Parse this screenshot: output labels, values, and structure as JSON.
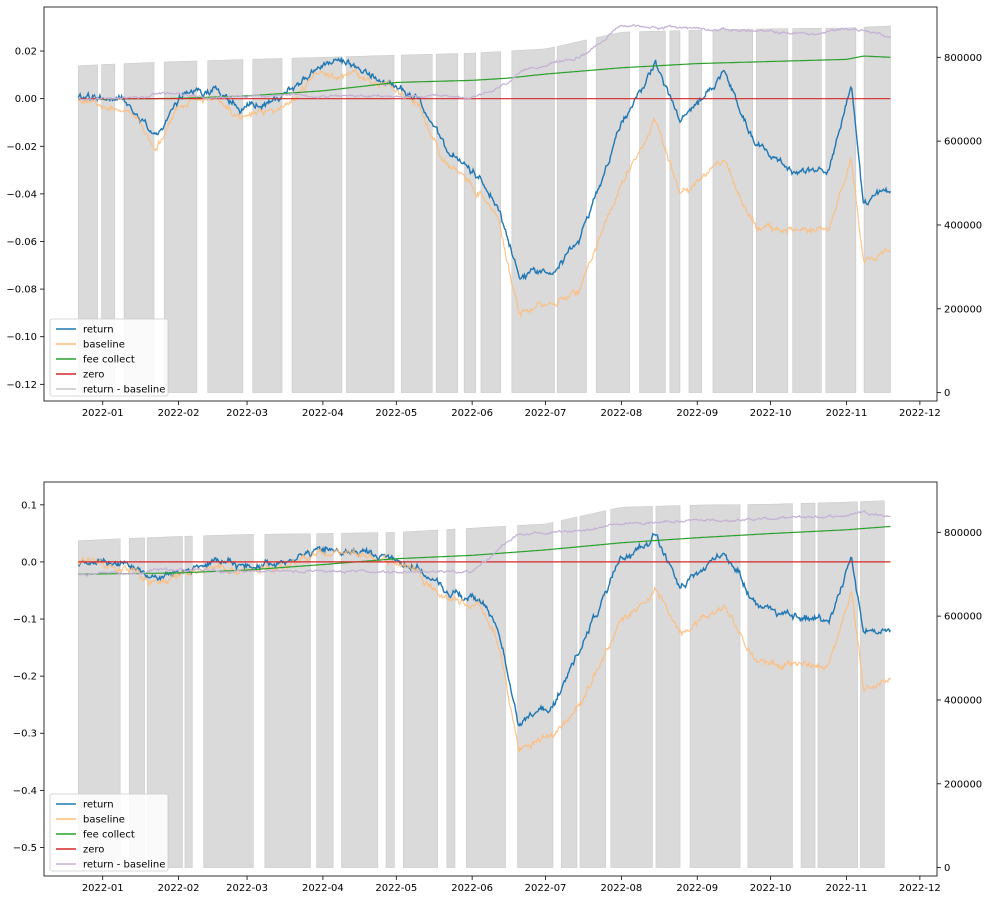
{
  "chart_data": [
    {
      "type": "line",
      "title": "",
      "x_axis": {
        "ticks": [
          "2022-01",
          "2022-02",
          "2022-03",
          "2022-04",
          "2022-05",
          "2022-06",
          "2022-07",
          "2022-08",
          "2022-09",
          "2022-10",
          "2022-11",
          "2022-12"
        ],
        "range": [
          "2021-12-08",
          "2022-12-08"
        ]
      },
      "y_left": {
        "ticks": [
          0.02,
          0.0,
          -0.02,
          -0.04,
          -0.06,
          -0.08,
          -0.1,
          -0.12
        ],
        "tick_labels": [
          "0.02",
          "0.00",
          "−0.02",
          "−0.04",
          "−0.06",
          "−0.08",
          "−0.10",
          "−0.12"
        ],
        "ylim": [
          -0.127,
          0.0385
        ]
      },
      "y_right": {
        "ticks": [
          800000,
          600000,
          400000,
          200000,
          0
        ],
        "tick_labels": [
          "800000",
          "600000",
          "400000",
          "200000",
          "0"
        ],
        "ylim": [
          -20000,
          920000
        ]
      },
      "legend": {
        "position": "lower left",
        "entries": [
          {
            "label": "return",
            "color": "#1f77b4"
          },
          {
            "label": "baseline",
            "color": "#ffbb78"
          },
          {
            "label": "fee collect",
            "color": "#2ca02c"
          },
          {
            "label": "zero",
            "color": "#d62728"
          },
          {
            "label": "return - baseline",
            "color": "#c7c7c7"
          }
        ]
      },
      "series": [
        {
          "name": "return",
          "color": "#1f77b4",
          "axis": "left",
          "x": [
            "2021-12-22",
            "2022-01-10",
            "2022-01-23",
            "2022-02-02",
            "2022-02-15",
            "2022-02-26",
            "2022-03-15",
            "2022-04-01",
            "2022-04-15",
            "2022-05-01",
            "2022-05-10",
            "2022-05-20",
            "2022-06-05",
            "2022-06-12",
            "2022-06-20",
            "2022-07-05",
            "2022-07-15",
            "2022-08-01",
            "2022-08-15",
            "2022-08-25",
            "2022-09-12",
            "2022-09-25",
            "2022-10-10",
            "2022-10-25",
            "2022-11-03",
            "2022-11-08",
            "2022-11-19"
          ],
          "values": [
            0.0,
            0.0,
            -0.015,
            0.0,
            0.005,
            -0.005,
            0.0,
            0.015,
            0.012,
            0.005,
            0.0,
            -0.02,
            -0.035,
            -0.045,
            -0.075,
            -0.07,
            -0.06,
            -0.01,
            0.015,
            -0.01,
            0.01,
            -0.02,
            -0.03,
            -0.03,
            0.005,
            -0.045,
            -0.037
          ]
        },
        {
          "name": "baseline",
          "color": "#ffbb78",
          "axis": "left",
          "x": [
            "2021-12-22",
            "2022-01-10",
            "2022-01-23",
            "2022-02-02",
            "2022-02-15",
            "2022-02-26",
            "2022-03-15",
            "2022-04-01",
            "2022-04-15",
            "2022-05-01",
            "2022-05-10",
            "2022-05-20",
            "2022-06-05",
            "2022-06-12",
            "2022-06-20",
            "2022-07-05",
            "2022-07-15",
            "2022-08-01",
            "2022-08-15",
            "2022-08-25",
            "2022-09-12",
            "2022-09-25",
            "2022-10-10",
            "2022-10-25",
            "2022-11-03",
            "2022-11-08",
            "2022-11-19"
          ],
          "values": [
            0.0,
            -0.005,
            -0.02,
            -0.002,
            0.0,
            -0.008,
            -0.004,
            0.012,
            0.01,
            0.003,
            -0.003,
            -0.025,
            -0.04,
            -0.05,
            -0.09,
            -0.085,
            -0.08,
            -0.035,
            -0.01,
            -0.04,
            -0.025,
            -0.055,
            -0.055,
            -0.055,
            -0.025,
            -0.07,
            -0.063
          ]
        },
        {
          "name": "fee collect",
          "color": "#2ca02c",
          "axis": "right",
          "x": [
            "2021-12-22",
            "2022-02-01",
            "2022-03-01",
            "2022-04-01",
            "2022-05-01",
            "2022-06-01",
            "2022-06-15",
            "2022-07-01",
            "2022-08-01",
            "2022-09-01",
            "2022-10-01",
            "2022-11-01",
            "2022-11-08",
            "2022-11-19"
          ],
          "values": [
            700000,
            702000,
            708000,
            720000,
            740000,
            745000,
            750000,
            760000,
            775000,
            785000,
            790000,
            795000,
            803000,
            800000
          ]
        },
        {
          "name": "zero",
          "color": "#d62728",
          "axis": "left",
          "x": [
            "2021-12-22",
            "2022-11-19"
          ],
          "values": [
            0.0,
            0.0
          ]
        },
        {
          "name": "return - baseline",
          "color": "#c7c7c7",
          "axis": "right",
          "style": "fill_between_zero",
          "x": [
            "2021-12-22",
            "2022-01-10",
            "2022-02-01",
            "2022-03-01",
            "2022-04-01",
            "2022-05-01",
            "2022-06-01",
            "2022-07-01",
            "2022-08-01",
            "2022-09-01",
            "2022-10-01",
            "2022-11-01",
            "2022-11-19"
          ],
          "values": [
            780000,
            785000,
            790000,
            795000,
            800000,
            805000,
            810000,
            820000,
            860000,
            865000,
            868000,
            870000,
            875000
          ]
        },
        {
          "name": "return - baseline",
          "color": "#c5b0d5",
          "axis": "right",
          "x": [
            "2021-12-22",
            "2022-01-20",
            "2022-01-22",
            "2022-02-15",
            "2022-03-20",
            "2022-05-10",
            "2022-06-03",
            "2022-06-10",
            "2022-06-25",
            "2022-07-15",
            "2022-08-01",
            "2022-09-01",
            "2022-10-01",
            "2022-10-20",
            "2022-11-01",
            "2022-11-10",
            "2022-11-19"
          ],
          "values": [
            700000,
            705000,
            715000,
            705000,
            710000,
            705000,
            705000,
            720000,
            775000,
            800000,
            875000,
            870000,
            860000,
            855000,
            870000,
            862000,
            850000
          ]
        }
      ]
    },
    {
      "type": "line",
      "title": "",
      "x_axis": {
        "ticks": [
          "2022-01",
          "2022-02",
          "2022-03",
          "2022-04",
          "2022-05",
          "2022-06",
          "2022-07",
          "2022-08",
          "2022-09",
          "2022-10",
          "2022-11",
          "2022-12"
        ],
        "range": [
          "2021-12-08",
          "2022-12-08"
        ]
      },
      "y_left": {
        "ticks": [
          0.1,
          0.0,
          -0.1,
          -0.2,
          -0.3,
          -0.4,
          -0.5
        ],
        "tick_labels": [
          "0.1",
          "0.0",
          "−0.1",
          "−0.2",
          "−0.3",
          "−0.4",
          "−0.5"
        ],
        "ylim": [
          -0.55,
          0.14
        ]
      },
      "y_right": {
        "ticks": [
          800000,
          600000,
          400000,
          200000,
          0
        ],
        "tick_labels": [
          "800000",
          "600000",
          "400000",
          "200000",
          "0"
        ],
        "ylim": [
          -20000,
          920000
        ]
      },
      "legend": {
        "position": "lower left",
        "entries": [
          {
            "label": "return",
            "color": "#1f77b4"
          },
          {
            "label": "baseline",
            "color": "#ffbb78"
          },
          {
            "label": "fee collect",
            "color": "#2ca02c"
          },
          {
            "label": "zero",
            "color": "#d62728"
          },
          {
            "label": "return - baseline",
            "color": "#c5b0d5"
          }
        ]
      },
      "series": [
        {
          "name": "return",
          "color": "#1f77b4",
          "axis": "left",
          "x": [
            "2021-12-22",
            "2022-01-10",
            "2022-01-23",
            "2022-02-15",
            "2022-03-01",
            "2022-04-01",
            "2022-04-20",
            "2022-05-01",
            "2022-05-10",
            "2022-05-20",
            "2022-06-05",
            "2022-06-12",
            "2022-06-20",
            "2022-07-05",
            "2022-07-15",
            "2022-08-01",
            "2022-08-15",
            "2022-08-25",
            "2022-09-12",
            "2022-09-25",
            "2022-10-10",
            "2022-10-25",
            "2022-11-03",
            "2022-11-08",
            "2022-11-19"
          ],
          "values": [
            0.0,
            0.0,
            -0.03,
            0.0,
            -0.01,
            0.02,
            0.015,
            0.005,
            -0.01,
            -0.05,
            -0.07,
            -0.12,
            -0.28,
            -0.25,
            -0.15,
            0.0,
            0.05,
            -0.05,
            0.02,
            -0.07,
            -0.1,
            -0.1,
            0.01,
            -0.12,
            -0.12
          ]
        },
        {
          "name": "baseline",
          "color": "#ffbb78",
          "axis": "left",
          "x": [
            "2021-12-22",
            "2022-01-10",
            "2022-01-23",
            "2022-02-15",
            "2022-03-01",
            "2022-04-01",
            "2022-04-20",
            "2022-05-01",
            "2022-05-10",
            "2022-05-20",
            "2022-06-05",
            "2022-06-12",
            "2022-06-20",
            "2022-07-05",
            "2022-07-15",
            "2022-08-01",
            "2022-08-15",
            "2022-08-25",
            "2022-09-12",
            "2022-09-25",
            "2022-10-10",
            "2022-10-25",
            "2022-11-03",
            "2022-11-08",
            "2022-11-19"
          ],
          "values": [
            0.0,
            -0.01,
            -0.04,
            -0.005,
            -0.02,
            0.015,
            0.01,
            0.0,
            -0.015,
            -0.06,
            -0.08,
            -0.15,
            -0.33,
            -0.3,
            -0.25,
            -0.1,
            -0.05,
            -0.12,
            -0.08,
            -0.17,
            -0.18,
            -0.18,
            -0.05,
            -0.22,
            -0.21
          ]
        },
        {
          "name": "fee collect",
          "color": "#2ca02c",
          "axis": "right",
          "x": [
            "2021-12-22",
            "2022-02-01",
            "2022-03-01",
            "2022-04-01",
            "2022-05-01",
            "2022-06-01",
            "2022-07-01",
            "2022-08-01",
            "2022-09-01",
            "2022-10-01",
            "2022-11-01",
            "2022-11-19"
          ],
          "values": [
            700000,
            703000,
            710000,
            723000,
            737000,
            745000,
            758000,
            775000,
            787000,
            797000,
            806000,
            814000
          ]
        },
        {
          "name": "zero",
          "color": "#d62728",
          "axis": "left",
          "x": [
            "2021-12-22",
            "2022-11-19"
          ],
          "values": [
            0.0,
            0.0
          ]
        },
        {
          "name": "return - baseline",
          "color": "#c7c7c7",
          "axis": "right",
          "style": "fill_between_zero",
          "x": [
            "2021-12-22",
            "2022-01-10",
            "2022-02-01",
            "2022-03-01",
            "2022-04-01",
            "2022-05-01",
            "2022-06-01",
            "2022-07-01",
            "2022-08-01",
            "2022-09-01",
            "2022-10-01",
            "2022-11-01",
            "2022-11-19"
          ],
          "values": [
            780000,
            785000,
            790000,
            795000,
            797000,
            800000,
            810000,
            820000,
            860000,
            865000,
            867000,
            872000,
            876000
          ]
        },
        {
          "name": "return - baseline",
          "color": "#c5b0d5",
          "axis": "right",
          "x": [
            "2021-12-22",
            "2022-01-20",
            "2022-01-22",
            "2022-03-01",
            "2022-05-01",
            "2022-06-01",
            "2022-06-20",
            "2022-07-10",
            "2022-08-01",
            "2022-09-01",
            "2022-10-01",
            "2022-11-01",
            "2022-11-08",
            "2022-11-19"
          ],
          "values": [
            700000,
            703000,
            712000,
            705000,
            706000,
            708000,
            795000,
            800000,
            822000,
            828000,
            832000,
            840000,
            850000,
            838000
          ]
        }
      ]
    }
  ]
}
